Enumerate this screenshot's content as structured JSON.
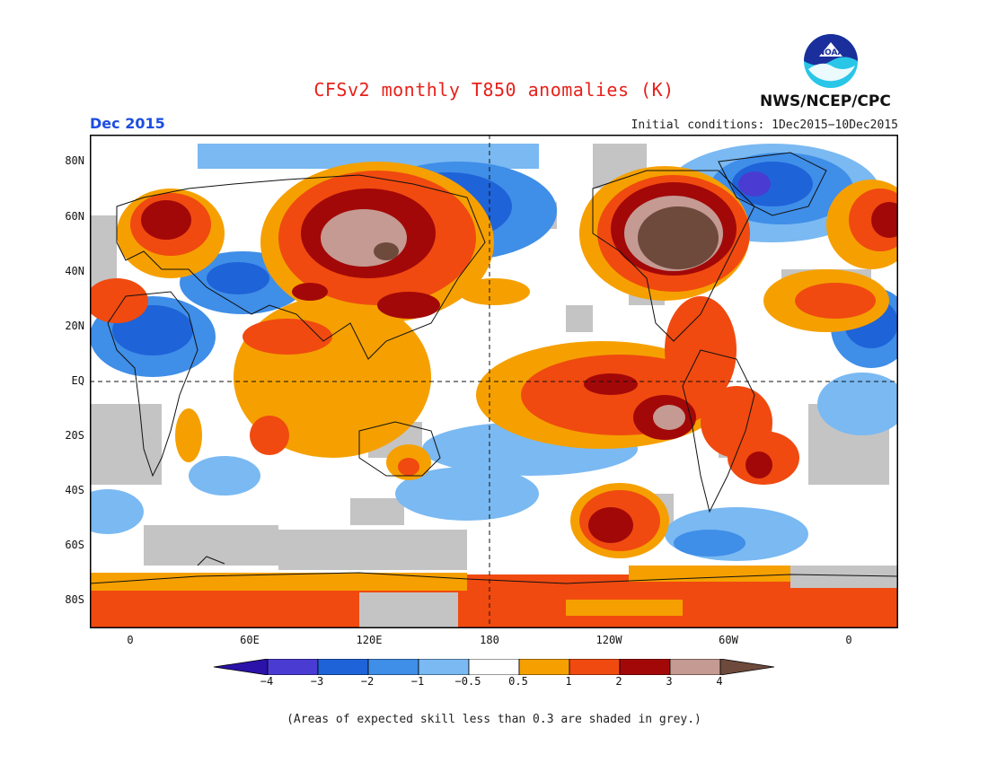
{
  "header": {
    "title": "CFSv2 monthly T850 anomalies (K)",
    "month": "Dec 2015",
    "initial_conditions": "Initial conditions: 1Dec2015−10Dec2015",
    "agency": "NWS/NCEP/CPC",
    "logo_text": "NOAA"
  },
  "axes": {
    "y_labels": [
      "80N",
      "60N",
      "40N",
      "20N",
      "EQ",
      "20S",
      "40S",
      "60S",
      "80S"
    ],
    "x_labels": [
      "0",
      "60E",
      "120E",
      "180",
      "120W",
      "60W",
      "0"
    ]
  },
  "legend": {
    "labels": [
      "−4",
      "−3",
      "−2",
      "−1",
      "−0.5",
      "0.5",
      "1",
      "2",
      "3",
      "4"
    ],
    "colors": [
      "#2b12a8",
      "#4a3bd2",
      "#1f63d8",
      "#3f8ee8",
      "#7ab9f2",
      "#ffffff",
      "#f5a000",
      "#f04a10",
      "#a30808",
      "#c49a92",
      "#6e4a3c"
    ]
  },
  "footnote": "(Areas of expected skill less than 0.3 are shaded in grey.)",
  "map": {
    "low_skill_color": "#c4c4c4"
  }
}
